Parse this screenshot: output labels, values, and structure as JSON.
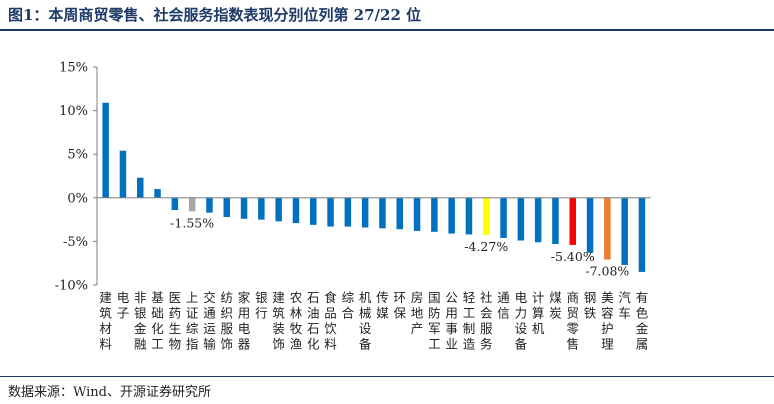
{
  "title": "图1：本周商贸零售、社会服务指数表现分别位列第 27/22 位",
  "source": "数据来源：Wind、开源证券研究所",
  "colors": {
    "default": "#0070c0",
    "highlight_gray": "#a6a6a6",
    "highlight_yellow": "#ffff00",
    "highlight_red": "#ff0000",
    "highlight_orange": "#ed7d31",
    "title": "#1f3a66"
  },
  "chart_data": {
    "type": "bar",
    "title": "",
    "xlabel": "",
    "ylabel": "",
    "ylim": [
      -10,
      15
    ],
    "yticks": [
      "15%",
      "10%",
      "5%",
      "0%",
      "-5%",
      "-10%"
    ],
    "ytick_values": [
      15,
      10,
      5,
      0,
      -5,
      -10
    ],
    "grid": false,
    "categories": [
      "建筑材料",
      "电子",
      "非银金融",
      "基础化工",
      "医药生物",
      "上证综指",
      "交通运输",
      "纺织服饰",
      "家用电器",
      "银行",
      "建筑装饰",
      "农林牧渔",
      "石油石化",
      "食品饮料",
      "综合",
      "机械设备",
      "传媒",
      "环保",
      "房地产",
      "国防军工",
      "公用事业",
      "轻工制造",
      "社会服务",
      "通信",
      "电力设备",
      "计算机",
      "煤炭",
      "商贸零售",
      "钢铁",
      "美容护理",
      "汽车",
      "有色金属"
    ],
    "values": [
      10.9,
      5.4,
      2.3,
      1.0,
      -1.4,
      -1.55,
      -1.7,
      -2.2,
      -2.4,
      -2.5,
      -2.7,
      -2.9,
      -3.1,
      -3.3,
      -3.3,
      -3.4,
      -3.5,
      -3.6,
      -3.8,
      -3.9,
      -4.1,
      -4.2,
      -4.27,
      -4.6,
      -4.9,
      -5.1,
      -5.3,
      -5.4,
      -6.3,
      -7.08,
      -7.7,
      -8.5
    ],
    "bar_colors": [
      "default",
      "default",
      "default",
      "default",
      "default",
      "highlight_gray",
      "default",
      "default",
      "default",
      "default",
      "default",
      "default",
      "default",
      "default",
      "default",
      "default",
      "default",
      "default",
      "default",
      "default",
      "default",
      "default",
      "highlight_yellow",
      "default",
      "default",
      "default",
      "default",
      "highlight_red",
      "default",
      "highlight_orange",
      "default",
      "default"
    ],
    "data_labels": [
      {
        "index": 5,
        "text": "-1.55%"
      },
      {
        "index": 22,
        "text": "-4.27%"
      },
      {
        "index": 27,
        "text": "-5.40%"
      },
      {
        "index": 29,
        "text": "-7.08%"
      }
    ]
  }
}
